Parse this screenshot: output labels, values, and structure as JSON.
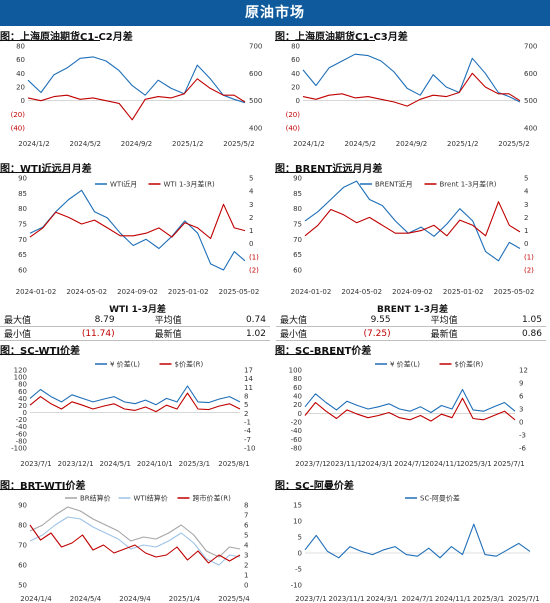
{
  "banner": "原油市场",
  "panels": [
    {
      "title": "图：上海原油期货C1-C2月差"
    },
    {
      "title": "图：上海原油期货C1-C3月差"
    },
    {
      "title": "图：WTI近远月月差"
    },
    {
      "title": "图：BRENT近远月月差"
    },
    {
      "title": "图：SC-WTI价差"
    },
    {
      "title": "图：SC-BRENT价差"
    },
    {
      "title": "图：BRT-WTI价差"
    },
    {
      "title": "图：SC-阿曼价差"
    }
  ],
  "wti_stats": {
    "title": "WTI 1-3月差",
    "rows": [
      {
        "l1": "最大值",
        "v1": "8.79",
        "l2": "平均值",
        "v2": "0.74"
      },
      {
        "l1": "最小值",
        "v1": "(11.74)",
        "l2": "最新值",
        "v2": "1.02"
      }
    ]
  },
  "brent_stats": {
    "title": "BRENT 1-3月差",
    "rows": [
      {
        "l1": "最大值",
        "v1": "9.55",
        "l2": "平均值",
        "v2": "1.05"
      },
      {
        "l1": "最小值",
        "v1": "(7.25)",
        "l2": "最新值",
        "v2": "0.86"
      }
    ]
  },
  "colors": {
    "blue": "#1f6fb8",
    "red": "#c00000",
    "gray": "#a6a6a6",
    "lightblue": "#9dc3e6",
    "banner": "#0e5a9c"
  },
  "chart_data": [
    {
      "type": "line",
      "title": "图：上海原油期货C1-C2月差",
      "x_ticks": [
        "2024/1/2",
        "2024/5/2",
        "2024/9/2",
        "2025/1/2",
        "2025/5/2"
      ],
      "y_left_ticks": [
        "80",
        "60",
        "40",
        "20",
        "0",
        "(20)",
        "(40)"
      ],
      "y_left_lim": [
        -40,
        80
      ],
      "y_right_ticks": [
        "700",
        "600",
        "500",
        "400"
      ],
      "y_right_lim": [
        400,
        700
      ],
      "series": [
        {
          "axis": "left",
          "color": "#1f6fb8",
          "x": [
            0,
            0.06,
            0.12,
            0.18,
            0.24,
            0.3,
            0.36,
            0.42,
            0.48,
            0.54,
            0.6,
            0.66,
            0.72,
            0.78,
            0.84,
            0.9,
            0.95,
            1.0
          ],
          "values": [
            30,
            12,
            38,
            48,
            62,
            64,
            58,
            44,
            22,
            8,
            30,
            18,
            10,
            52,
            32,
            8,
            2,
            -3
          ]
        },
        {
          "axis": "right",
          "color": "#c00000",
          "x": [
            0,
            0.06,
            0.12,
            0.18,
            0.24,
            0.3,
            0.36,
            0.42,
            0.48,
            0.54,
            0.6,
            0.66,
            0.72,
            0.78,
            0.84,
            0.9,
            0.95,
            1.0
          ],
          "values": [
            510,
            500,
            515,
            520,
            505,
            510,
            500,
            490,
            430,
            505,
            515,
            510,
            525,
            580,
            545,
            520,
            520,
            495
          ]
        }
      ]
    },
    {
      "type": "line",
      "title": "图：上海原油期货C1-C3月差",
      "x_ticks": [
        "2024/1/2",
        "2024/5/2",
        "2024/9/2",
        "2025/1/2",
        "2025/5/2"
      ],
      "y_left_ticks": [
        "80",
        "60",
        "40",
        "20",
        "0",
        "(20)",
        "(40)"
      ],
      "y_left_lim": [
        -40,
        80
      ],
      "y_right_ticks": [
        "700",
        "600",
        "500",
        "400"
      ],
      "y_right_lim": [
        400,
        700
      ],
      "series": [
        {
          "axis": "left",
          "color": "#1f6fb8",
          "x": [
            0,
            0.06,
            0.12,
            0.18,
            0.24,
            0.3,
            0.36,
            0.42,
            0.48,
            0.54,
            0.6,
            0.66,
            0.72,
            0.78,
            0.84,
            0.9,
            0.95,
            1.0
          ],
          "values": [
            45,
            22,
            48,
            58,
            68,
            66,
            58,
            42,
            18,
            8,
            38,
            20,
            12,
            62,
            40,
            12,
            6,
            -2
          ]
        },
        {
          "axis": "right",
          "color": "#c00000",
          "x": [
            0,
            0.06,
            0.12,
            0.18,
            0.24,
            0.3,
            0.36,
            0.42,
            0.48,
            0.54,
            0.6,
            0.66,
            0.72,
            0.78,
            0.84,
            0.9,
            0.95,
            1.0
          ],
          "values": [
            515,
            505,
            520,
            525,
            510,
            515,
            505,
            495,
            480,
            505,
            520,
            515,
            530,
            600,
            550,
            525,
            525,
            500
          ]
        }
      ]
    },
    {
      "type": "line",
      "title": "图：WTI近远月月差",
      "x_ticks": [
        "2024-01-02",
        "2024-05-02",
        "2024-09-02",
        "2025-01-02",
        "2025-05-02"
      ],
      "y_left_ticks": [
        "90",
        "85",
        "80",
        "75",
        "70",
        "65",
        "60"
      ],
      "y_left_lim": [
        60,
        90
      ],
      "y_right_ticks": [
        "5",
        "4",
        "3",
        "2",
        "1",
        "0",
        "(1)",
        "(2)"
      ],
      "y_right_lim": [
        -2,
        5
      ],
      "legend": [
        "WTI近月",
        "WTI 1-3月差(R)"
      ],
      "series": [
        {
          "name": "WTI近月",
          "axis": "left",
          "color": "#1f6fb8",
          "x": [
            0,
            0.06,
            0.12,
            0.18,
            0.24,
            0.3,
            0.36,
            0.42,
            0.48,
            0.54,
            0.6,
            0.66,
            0.72,
            0.78,
            0.84,
            0.9,
            0.95,
            1.0
          ],
          "values": [
            72,
            74,
            79,
            83,
            86,
            79,
            77,
            72,
            68,
            70,
            67,
            71,
            76,
            72,
            62,
            60,
            66,
            63
          ]
        },
        {
          "name": "WTI 1-3月差(R)",
          "axis": "right",
          "color": "#c00000",
          "x": [
            0,
            0.06,
            0.12,
            0.18,
            0.24,
            0.3,
            0.36,
            0.42,
            0.48,
            0.54,
            0.6,
            0.66,
            0.72,
            0.78,
            0.84,
            0.9,
            0.95,
            1.0
          ],
          "values": [
            0.5,
            1.2,
            2.4,
            2.0,
            1.5,
            1.8,
            1.2,
            0.6,
            0.6,
            0.8,
            1.2,
            0.5,
            1.6,
            1.2,
            0.4,
            3.0,
            1.2,
            1.0
          ]
        }
      ]
    },
    {
      "type": "line",
      "title": "图：BRENT近远月月差",
      "x_ticks": [
        "2024-01-02",
        "2024-05-02",
        "2024-09-02",
        "2025-01-02",
        "2025-05-02"
      ],
      "y_left_ticks": [
        "90",
        "85",
        "80",
        "75",
        "70",
        "65",
        "60"
      ],
      "y_left_lim": [
        60,
        90
      ],
      "y_right_ticks": [
        "5",
        "4",
        "3",
        "2",
        "1",
        "0",
        "(1)",
        "(2)"
      ],
      "y_right_lim": [
        -2,
        5
      ],
      "legend": [
        "BRENT近月",
        "Brent 1-3月差(R)"
      ],
      "series": [
        {
          "name": "BRENT近月",
          "axis": "left",
          "color": "#1f6fb8",
          "x": [
            0,
            0.06,
            0.12,
            0.18,
            0.24,
            0.3,
            0.36,
            0.42,
            0.48,
            0.54,
            0.6,
            0.66,
            0.72,
            0.78,
            0.84,
            0.9,
            0.95,
            1.0
          ],
          "values": [
            76,
            79,
            83,
            87,
            89,
            83,
            81,
            76,
            72,
            74,
            71,
            75,
            80,
            76,
            66,
            63,
            69,
            67
          ]
        },
        {
          "name": "Brent 1-3月差(R)",
          "axis": "right",
          "color": "#c00000",
          "x": [
            0,
            0.06,
            0.12,
            0.18,
            0.24,
            0.3,
            0.36,
            0.42,
            0.48,
            0.54,
            0.6,
            0.66,
            0.72,
            0.78,
            0.84,
            0.9,
            0.95,
            1.0
          ],
          "values": [
            0.6,
            1.4,
            2.6,
            2.2,
            1.6,
            2.0,
            1.4,
            0.8,
            0.8,
            1.0,
            1.4,
            0.6,
            1.8,
            1.4,
            0.6,
            3.2,
            1.4,
            0.9
          ]
        }
      ]
    },
    {
      "type": "line",
      "title": "图：SC-WTI价差",
      "x_ticks": [
        "2023/7/1",
        "2023/12/1",
        "2024/5/1",
        "2024/10/1",
        "2025/3/1",
        "2025/8/1"
      ],
      "y_left_ticks": [
        "120",
        "100",
        "80",
        "60",
        "40",
        "20",
        "0",
        "-20",
        "-40",
        "-60",
        "-80",
        "-100"
      ],
      "y_left_lim": [
        -100,
        120
      ],
      "y_right_ticks": [
        "17",
        "14",
        "11",
        "8",
        "5",
        "2",
        "-1",
        "-4",
        "-7",
        "-10"
      ],
      "y_right_lim": [
        -10,
        17
      ],
      "legend": [
        "¥ 价差(L)",
        "$价差(R)"
      ],
      "series": [
        {
          "name": "¥ 价差(L)",
          "axis": "left",
          "color": "#1f6fb8",
          "x": [
            0,
            0.05,
            0.1,
            0.15,
            0.2,
            0.25,
            0.3,
            0.35,
            0.4,
            0.45,
            0.5,
            0.55,
            0.6,
            0.65,
            0.7,
            0.75,
            0.8,
            0.85,
            0.9,
            0.95,
            1.0
          ],
          "values": [
            40,
            65,
            45,
            30,
            50,
            40,
            30,
            38,
            45,
            30,
            25,
            35,
            22,
            40,
            30,
            75,
            30,
            28,
            38,
            45,
            30
          ]
        },
        {
          "name": "$价差(R)",
          "axis": "right",
          "color": "#c00000",
          "x": [
            0,
            0.05,
            0.1,
            0.15,
            0.2,
            0.25,
            0.3,
            0.35,
            0.4,
            0.45,
            0.5,
            0.55,
            0.6,
            0.65,
            0.7,
            0.75,
            0.8,
            0.85,
            0.9,
            0.95,
            1.0
          ],
          "values": [
            4.8,
            7.8,
            5.3,
            3.5,
            6.0,
            4.8,
            3.5,
            4.5,
            5.3,
            3.5,
            3.0,
            4.2,
            2.6,
            4.8,
            3.5,
            9.0,
            3.5,
            3.3,
            4.5,
            5.3,
            3.5
          ]
        }
      ]
    },
    {
      "type": "line",
      "title": "图：SC-BRENT价差",
      "x_ticks": [
        "2023/7/1",
        "2023/11/1",
        "2024/3/1",
        "2024/7/1",
        "2024/11/1",
        "2025/3/1",
        "2025/7/1"
      ],
      "y_left_ticks": [
        "100",
        "80",
        "60",
        "40",
        "20",
        "0",
        "-20",
        "-40",
        "-60",
        "-80"
      ],
      "y_left_lim": [
        -80,
        100
      ],
      "y_right_ticks": [
        "12",
        "9",
        "6",
        "3",
        "0",
        "-3",
        "-6"
      ],
      "y_right_lim": [
        -6,
        12
      ],
      "legend": [
        "¥ 价差(L)",
        "$价差(R)"
      ],
      "series": [
        {
          "name": "¥ 价差(L)",
          "axis": "left",
          "color": "#1f6fb8",
          "x": [
            0,
            0.05,
            0.1,
            0.15,
            0.2,
            0.25,
            0.3,
            0.35,
            0.4,
            0.45,
            0.5,
            0.55,
            0.6,
            0.65,
            0.7,
            0.75,
            0.8,
            0.85,
            0.9,
            0.95,
            1.0
          ],
          "values": [
            15,
            45,
            25,
            8,
            28,
            18,
            10,
            15,
            22,
            10,
            5,
            15,
            2,
            18,
            10,
            55,
            8,
            5,
            15,
            25,
            5
          ]
        },
        {
          "name": "$价差(R)",
          "axis": "right",
          "color": "#c00000",
          "x": [
            0,
            0.05,
            0.1,
            0.15,
            0.2,
            0.25,
            0.3,
            0.35,
            0.4,
            0.45,
            0.5,
            0.55,
            0.6,
            0.65,
            0.7,
            0.75,
            0.8,
            0.85,
            0.9,
            0.95,
            1.0
          ],
          "values": [
            1.5,
            4.5,
            2.5,
            0.8,
            2.8,
            1.8,
            1.0,
            1.5,
            2.2,
            1.0,
            0.5,
            1.5,
            0.2,
            1.8,
            1.0,
            5.5,
            0.8,
            0.5,
            1.5,
            2.5,
            0.5
          ]
        }
      ]
    },
    {
      "type": "line",
      "title": "图：BRT-WTI价差",
      "x_ticks": [
        "2024/1/4",
        "2024/5/4",
        "2024/9/4",
        "2025/1/4",
        "2025/5/4"
      ],
      "y_left_ticks": [
        "90",
        "80",
        "70",
        "60",
        "50"
      ],
      "y_left_lim": [
        50,
        90
      ],
      "y_right_ticks": [
        "8",
        "7",
        "6",
        "5",
        "4",
        "3",
        "2",
        "1",
        "0"
      ],
      "y_right_lim": [
        0,
        8
      ],
      "legend": [
        "BR结算价",
        "WTI结算价",
        "跨市价差(R)"
      ],
      "series": [
        {
          "name": "BR结算价",
          "axis": "left",
          "color": "#a6a6a6",
          "x": [
            0,
            0.06,
            0.12,
            0.18,
            0.24,
            0.3,
            0.36,
            0.42,
            0.48,
            0.54,
            0.6,
            0.66,
            0.72,
            0.78,
            0.84,
            0.9,
            0.95,
            1.0
          ],
          "values": [
            77,
            80,
            85,
            89,
            87,
            83,
            80,
            77,
            72,
            74,
            73,
            76,
            80,
            75,
            67,
            64,
            69,
            68
          ]
        },
        {
          "name": "WTI结算价",
          "axis": "left",
          "color": "#9dc3e6",
          "x": [
            0,
            0.06,
            0.12,
            0.18,
            0.24,
            0.3,
            0.36,
            0.42,
            0.48,
            0.54,
            0.6,
            0.66,
            0.72,
            0.78,
            0.84,
            0.9,
            0.95,
            1.0
          ],
          "values": [
            72,
            75,
            80,
            84,
            83,
            79,
            76,
            73,
            68,
            70,
            69,
            72,
            76,
            71,
            63,
            60,
            65,
            64
          ]
        },
        {
          "name": "跨市价差(R)",
          "axis": "right",
          "color": "#c00000",
          "x": [
            0,
            0.05,
            0.1,
            0.15,
            0.2,
            0.25,
            0.3,
            0.35,
            0.4,
            0.45,
            0.5,
            0.55,
            0.6,
            0.65,
            0.7,
            0.75,
            0.8,
            0.85,
            0.9,
            0.95,
            1.0
          ],
          "values": [
            6.0,
            4.5,
            5.2,
            3.8,
            4.2,
            5.0,
            3.5,
            4.0,
            3.2,
            3.6,
            4.0,
            3.2,
            2.8,
            3.0,
            3.8,
            2.5,
            3.4,
            2.2,
            3.0,
            2.4,
            3.0
          ]
        }
      ]
    },
    {
      "type": "line",
      "title": "图：SC-阿曼价差",
      "x_ticks": [
        "2023/7/1",
        "2023/11/1",
        "2024/3/1",
        "2024/7/1",
        "2024/11/1",
        "2025/3/1",
        "2025/7/1"
      ],
      "y_left_ticks": [
        "15",
        "10",
        "5",
        "0",
        "-5",
        "-10"
      ],
      "y_left_lim": [
        -10,
        15
      ],
      "legend": [
        "SC-阿曼价差"
      ],
      "series": [
        {
          "name": "SC-阿曼价差",
          "axis": "left",
          "color": "#1f6fb8",
          "x": [
            0,
            0.05,
            0.1,
            0.15,
            0.2,
            0.25,
            0.3,
            0.35,
            0.4,
            0.45,
            0.5,
            0.55,
            0.6,
            0.65,
            0.7,
            0.75,
            0.8,
            0.85,
            0.9,
            0.95,
            1.0
          ],
          "values": [
            1.0,
            5.5,
            0.5,
            -1.5,
            2.0,
            0.5,
            -0.5,
            1.0,
            2.0,
            -0.5,
            -1.0,
            1.5,
            -1.5,
            2.0,
            -0.5,
            9.0,
            -0.5,
            -1.0,
            1.0,
            3.0,
            0.5
          ]
        }
      ]
    }
  ]
}
